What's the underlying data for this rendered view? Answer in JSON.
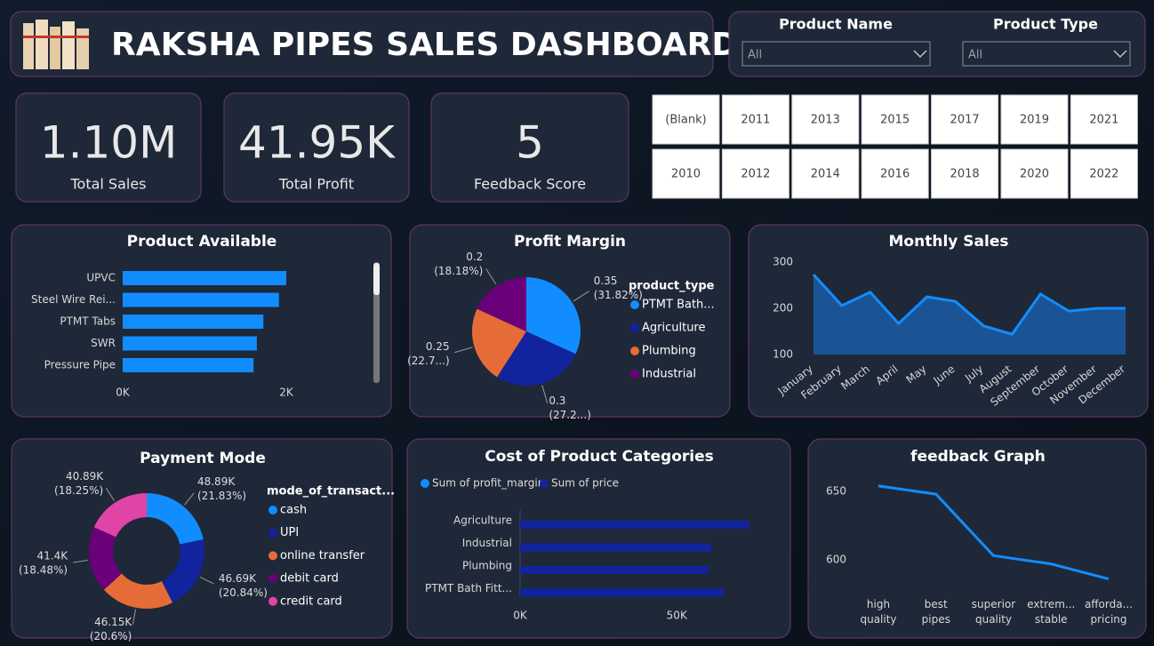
{
  "header": {
    "title": "RAKSHA PIPES SALES DASHBOARD"
  },
  "filters": [
    {
      "label": "Product Name",
      "value": "All"
    },
    {
      "label": "Product Type",
      "value": "All"
    }
  ],
  "kpis": [
    {
      "value": "1.10M",
      "label": "Total Sales"
    },
    {
      "value": "41.95K",
      "label": "Total Profit"
    },
    {
      "value": "5",
      "label": "Feedback Score"
    }
  ],
  "year_slicer": [
    [
      "(Blank)",
      "2011",
      "2013",
      "2015",
      "2017",
      "2019",
      "2021"
    ],
    [
      "2010",
      "2012",
      "2014",
      "2016",
      "2018",
      "2020",
      "2022"
    ]
  ],
  "chart_data": [
    {
      "type": "hbar",
      "title": "Product Available",
      "categories": [
        "UPVC",
        "Steel Wire Rei...",
        "PTMT Tabs",
        "SWR",
        "Pressure Pipe"
      ],
      "values": [
        2000,
        1910,
        1720,
        1640,
        1600
      ],
      "color": "#118dff",
      "xlim": [
        0,
        3000
      ],
      "xticks": [
        {
          "value": 0,
          "label": "0K"
        },
        {
          "value": 2000,
          "label": "2K"
        }
      ]
    },
    {
      "type": "pie",
      "title": "Profit Margin",
      "legend_title": "product_type",
      "categories": [
        "PTMT Bath...",
        "Agriculture",
        "Plumbing",
        "Industrial"
      ],
      "values": [
        0.35,
        0.3,
        0.25,
        0.2
      ],
      "percent_labels": [
        "(31.82%)",
        "(27.2...)",
        "(22.7...)",
        "(18.18%)"
      ],
      "colors": [
        "#118dff",
        "#12239e",
        "#e66c37",
        "#6b007b"
      ]
    },
    {
      "type": "area",
      "title": "Monthly Sales",
      "categories": [
        "January",
        "February",
        "March",
        "April",
        "May",
        "June",
        "July",
        "August",
        "September",
        "October",
        "November",
        "December"
      ],
      "values": [
        273,
        206,
        235,
        167,
        225,
        215,
        162,
        144,
        231,
        194,
        200,
        200
      ],
      "color": "#118dff",
      "ylim": [
        100,
        300
      ],
      "yticks": [
        100,
        200,
        300
      ]
    },
    {
      "type": "donut",
      "title": "Payment Mode",
      "legend_title": "mode_of_transact...",
      "categories": [
        "cash",
        "UPI",
        "online transfer",
        "debit card",
        "credit card"
      ],
      "values": [
        48890,
        46690,
        46150,
        41400,
        40890
      ],
      "value_labels": [
        "48.89K",
        "46.69K",
        "46.15K",
        "41.4K",
        "40.89K"
      ],
      "percent_labels": [
        "(21.83%)",
        "(20.84%)",
        "(20.6%)",
        "(18.48%)",
        "(18.25%)"
      ],
      "colors": [
        "#118dff",
        "#12239e",
        "#e66c37",
        "#6b007b",
        "#e044a7"
      ]
    },
    {
      "type": "grouped-hbar",
      "title": "Cost of Product Categories",
      "categories": [
        "Agriculture",
        "Industrial",
        "Plumbing",
        "PTMT Bath Fitt..."
      ],
      "series": [
        {
          "name": "Sum of profit_margin",
          "color": "#118dff",
          "values": [
            0.3,
            0.2,
            0.25,
            0.35
          ]
        },
        {
          "name": "Sum of price",
          "color": "#12239e",
          "values": [
            73000,
            61000,
            60000,
            65000
          ]
        }
      ],
      "xlim": [
        0,
        80000
      ],
      "xticks": [
        {
          "value": 0,
          "label": "0K"
        },
        {
          "value": 50000,
          "label": "50K"
        }
      ]
    },
    {
      "type": "line",
      "title": "feedback Graph",
      "categories": [
        "high quality",
        "best pipes",
        "superior quality",
        "extrem... stable",
        "afforda... pricing"
      ],
      "values": [
        654,
        648,
        603,
        597,
        586
      ],
      "color": "#118dff",
      "ylim": [
        575,
        665
      ],
      "yticks": [
        600,
        650
      ]
    }
  ]
}
